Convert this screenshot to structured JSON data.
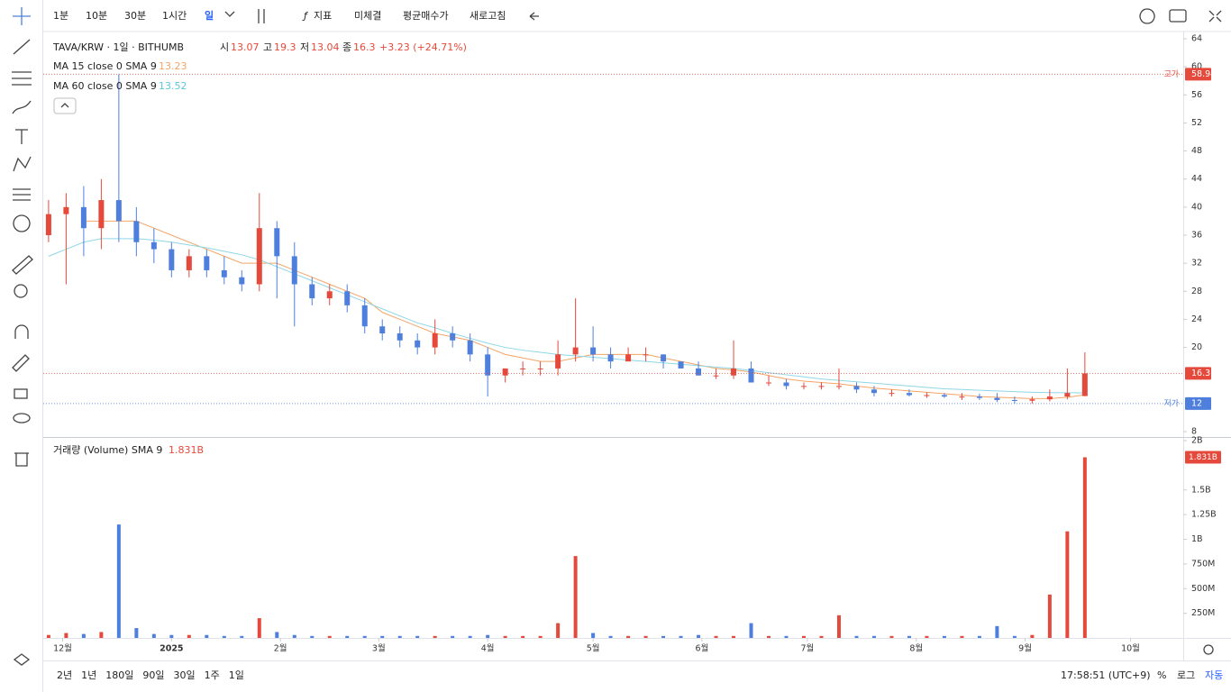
{
  "toolbar": {
    "intervals": [
      "1분",
      "10분",
      "30분",
      "1시간",
      "일"
    ],
    "indicators": "지표",
    "buttons": [
      "미체결",
      "평균매수가",
      "새로고침"
    ]
  },
  "legend": {
    "symbol": "TAVA/KRW · 1일 · BITHUMB",
    "open_label": "시",
    "high_label": "고",
    "low_label": "저",
    "close_label": "종",
    "change": "+3.23 (+24.71%)",
    "ma15": "MA 15 close 0 SMA 9",
    "ma60": "MA 60 close 0 SMA 9",
    "volume": "거래량 (Volume) SMA 9",
    "volume_value": "1.831B",
    "high_tag": "고가",
    "low_tag": "저가"
  },
  "bottom": {
    "ranges": [
      "2년",
      "1년",
      "180일",
      "90일",
      "30일",
      "1주",
      "1일"
    ],
    "clock": "17:58:51 (UTC+9)",
    "percent": "%",
    "log": "로그",
    "auto": "자동"
  },
  "chart_data": {
    "type": "candlestick",
    "up_color": "#e5493b",
    "down_color": "#4f7fdc",
    "x": [
      0,
      5,
      10,
      15,
      20,
      25,
      30,
      35,
      40,
      45,
      50,
      55,
      60,
      65,
      70,
      75,
      80,
      85,
      90,
      95,
      100,
      105,
      110,
      115,
      120,
      125,
      130,
      135,
      140,
      145,
      150,
      155,
      160,
      165,
      170,
      175,
      180,
      185,
      190,
      195,
      200,
      205,
      210,
      215,
      220,
      225,
      230,
      235,
      240,
      245,
      250,
      255,
      260,
      265,
      270,
      275,
      280,
      285,
      290,
      295
    ],
    "open": [
      36,
      39,
      40,
      37,
      41,
      38,
      35,
      34,
      31,
      33,
      31,
      30,
      29,
      37,
      33,
      29,
      27,
      28,
      26,
      23,
      22,
      21,
      20,
      22,
      21,
      19,
      16,
      17,
      17,
      17,
      19,
      20,
      19,
      18,
      19,
      19,
      18,
      17,
      16,
      16,
      17,
      15,
      15,
      14.5,
      14.5,
      14.5,
      14.5,
      14,
      13.5,
      13.5,
      13.2,
      13.2,
      13,
      13,
      12.8,
      12.5,
      12.4,
      12.6,
      13,
      13.07
    ],
    "high": [
      41,
      42,
      43,
      44,
      58.94,
      40,
      37,
      35,
      34,
      34,
      33,
      31,
      42,
      38,
      35,
      30,
      29,
      29,
      27,
      24,
      23,
      22,
      24,
      23,
      22,
      20,
      17,
      18,
      18,
      21,
      27,
      23,
      20,
      20,
      20,
      19,
      18,
      18,
      17,
      21,
      18,
      16,
      15.5,
      15,
      15,
      17,
      15,
      14.5,
      14,
      14,
      13.6,
      13.5,
      13.5,
      13.4,
      13.5,
      13,
      13,
      14,
      17,
      19.3
    ],
    "low": [
      35,
      29,
      33,
      34,
      35,
      33,
      32,
      30,
      30,
      30,
      29,
      28,
      28,
      27,
      23,
      26,
      26,
      25,
      22,
      21,
      20,
      19,
      19,
      20,
      18,
      13,
      15,
      16,
      16,
      16,
      18,
      18,
      17,
      18,
      18,
      17,
      17,
      16,
      15.5,
      15.5,
      15,
      14.5,
      14,
      14,
      14,
      14,
      13.5,
      13,
      13,
      13,
      12.8,
      12.8,
      12.5,
      12.5,
      12.2,
      12,
      12,
      12.3,
      12.6,
      13.04
    ],
    "close": [
      39,
      40,
      37,
      41,
      38,
      35,
      34,
      31,
      33,
      31,
      30,
      29,
      37,
      33,
      29,
      27,
      28,
      26,
      23,
      22,
      21,
      20,
      22,
      21,
      19,
      16,
      17,
      17,
      17,
      19,
      20,
      19,
      18,
      19,
      19,
      18,
      17,
      16,
      16,
      17,
      15,
      15,
      14.5,
      14.5,
      14.5,
      14.5,
      14,
      13.5,
      13.5,
      13.2,
      13.2,
      13,
      13,
      12.8,
      12.5,
      12.4,
      12.6,
      13,
      13.5,
      16.3
    ],
    "volume": [
      0.03,
      0.05,
      0.04,
      0.06,
      1.15,
      0.1,
      0.04,
      0.03,
      0.03,
      0.03,
      0.02,
      0.02,
      0.2,
      0.06,
      0.03,
      0.02,
      0.02,
      0.02,
      0.02,
      0.02,
      0.02,
      0.02,
      0.02,
      0.02,
      0.02,
      0.03,
      0.02,
      0.02,
      0.02,
      0.15,
      0.83,
      0.05,
      0.02,
      0.02,
      0.02,
      0.02,
      0.02,
      0.03,
      0.02,
      0.02,
      0.15,
      0.02,
      0.02,
      0.02,
      0.02,
      0.23,
      0.02,
      0.02,
      0.02,
      0.02,
      0.02,
      0.02,
      0.02,
      0.02,
      0.12,
      0.02,
      0.03,
      0.44,
      1.08,
      1.831
    ],
    "series": [
      {
        "name": "MA 15",
        "color": "#f4a466",
        "values": [
          null,
          null,
          38,
          38,
          38,
          38,
          37,
          36,
          35,
          34,
          33,
          32,
          32,
          32,
          31,
          30,
          29,
          28,
          27,
          25,
          24,
          23,
          22,
          21.5,
          21,
          20,
          19,
          18.5,
          18,
          18,
          18.5,
          19,
          19,
          19,
          19,
          18.5,
          18,
          17.5,
          17,
          16.8,
          16.5,
          16,
          15.5,
          15.2,
          15,
          14.8,
          14.5,
          14.2,
          14,
          13.8,
          13.6,
          13.4,
          13.2,
          13,
          12.9,
          12.8,
          12.7,
          12.7,
          12.9,
          13.23
        ]
      },
      {
        "name": "MA 60",
        "color": "#8fd6e6",
        "values": [
          33,
          34,
          35,
          35.5,
          35.5,
          35.5,
          35.3,
          35,
          34.6,
          34.2,
          33.7,
          33.2,
          32.5,
          31.5,
          30.5,
          29.5,
          28.5,
          27.5,
          26.5,
          25.5,
          24.5,
          23.5,
          22.8,
          22,
          21.3,
          20.6,
          20,
          19.6,
          19.3,
          19,
          18.8,
          18.6,
          18.4,
          18.2,
          18,
          17.8,
          17.6,
          17.4,
          17.2,
          17,
          16.7,
          16.4,
          16.1,
          15.8,
          15.5,
          15.3,
          15.1,
          14.9,
          14.7,
          14.5,
          14.3,
          14.1,
          14,
          13.9,
          13.8,
          13.7,
          13.6,
          13.55,
          13.54,
          13.52
        ]
      }
    ],
    "xlim": [
      -1,
      323
    ],
    "xticks": [
      {
        "value": 4,
        "label": "12월"
      },
      {
        "value": 35,
        "label": "2025"
      },
      {
        "value": 66,
        "label": "2월"
      },
      {
        "value": 94,
        "label": "3월"
      },
      {
        "value": 125,
        "label": "4월"
      },
      {
        "value": 155,
        "label": "5월"
      },
      {
        "value": 186,
        "label": "6월"
      },
      {
        "value": 216,
        "label": "7월"
      },
      {
        "value": 247,
        "label": "8월"
      },
      {
        "value": 278,
        "label": "9월"
      },
      {
        "value": 308,
        "label": "10월"
      }
    ],
    "ylim": [
      8,
      64
    ],
    "yticks": [
      8,
      20,
      24,
      28,
      32,
      36,
      40,
      44,
      48,
      52,
      56,
      60,
      64
    ],
    "vlim": [
      0,
      2
    ],
    "vticks": [
      {
        "value": 0.25,
        "label": "250M"
      },
      {
        "value": 0.5,
        "label": "500M"
      },
      {
        "value": 0.75,
        "label": "750M"
      },
      {
        "value": 1,
        "label": "1B"
      },
      {
        "value": 1.25,
        "label": "1.25B"
      },
      {
        "value": 1.5,
        "label": "1.5B"
      },
      {
        "value": 2,
        "label": "2B"
      }
    ]
  }
}
